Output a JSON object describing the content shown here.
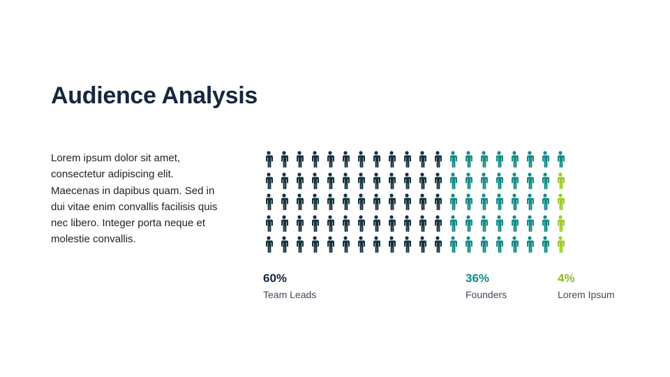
{
  "slide": {
    "title": "Audience Analysis",
    "body": "Lorem ipsum dolor sit amet, consectetur adipiscing elit. Maecenas in dapibus quam. Sed in dui vitae enim convallis facilisis quis nec libero. Integer porta neque et molestie convallis."
  },
  "chart_data": {
    "type": "pictogram",
    "total_icons": 100,
    "rows": 5,
    "columns": 20,
    "icon": "person-icon",
    "series": [
      {
        "name": "Team Leads",
        "label": "60%",
        "value": 60,
        "color": "#15313f"
      },
      {
        "name": "Founders",
        "label": "36%",
        "value": 36,
        "color": "#138a86"
      },
      {
        "name": "Lorem Ipsum",
        "label": "4%",
        "value": 4,
        "color": "#9dcb2f"
      }
    ]
  }
}
